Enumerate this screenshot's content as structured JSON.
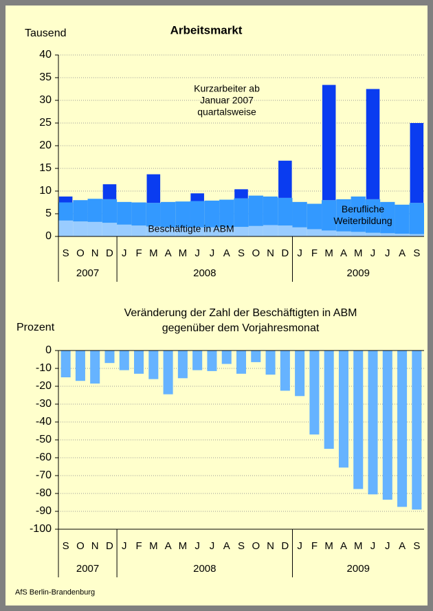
{
  "chart_data": [
    {
      "type": "stacked-bar",
      "title": "Arbeitsmarkt",
      "y_label": "Tausend",
      "categories": [
        "S",
        "O",
        "N",
        "D",
        "J",
        "F",
        "M",
        "A",
        "M",
        "J",
        "J",
        "A",
        "S",
        "O",
        "N",
        "D",
        "J",
        "F",
        "M",
        "A",
        "M",
        "J",
        "J",
        "A",
        "S"
      ],
      "year_labels": [
        "2007",
        null,
        null,
        null,
        "2008",
        null,
        null,
        null,
        null,
        null,
        null,
        null,
        null,
        null,
        null,
        null,
        "2009",
        null,
        null,
        null,
        null,
        null,
        null,
        null,
        null
      ],
      "series": [
        {
          "name": "Beschäftigte in ABM",
          "color": "#99ccff",
          "style": "area",
          "values": [
            3.5,
            3.3,
            3.2,
            3.0,
            2.6,
            2.4,
            2.2,
            2.0,
            2.0,
            2.0,
            2.0,
            2.0,
            2.1,
            2.3,
            2.5,
            2.4,
            2.0,
            1.6,
            1.3,
            1.1,
            1.0,
            0.8,
            0.7,
            0.6,
            0.5
          ]
        },
        {
          "name": "Berufliche Weiterbildung",
          "color": "#3399ff",
          "style": "area",
          "values": [
            4.0,
            4.7,
            5.1,
            5.2,
            5.0,
            5.1,
            5.2,
            5.6,
            5.7,
            5.8,
            5.9,
            6.1,
            6.3,
            6.7,
            6.3,
            6.1,
            5.6,
            5.6,
            6.7,
            7.1,
            7.8,
            7.4,
            6.9,
            6.4,
            6.9
          ]
        },
        {
          "name": "Kurzarbeiter ab Januar 2007 quartalsweise",
          "color": "#0a3cf0",
          "style": "bar",
          "values": [
            1.3,
            null,
            null,
            3.3,
            null,
            null,
            6.3,
            null,
            null,
            1.7,
            null,
            null,
            2.0,
            null,
            null,
            8.2,
            null,
            null,
            25.4,
            null,
            null,
            24.3,
            null,
            null,
            17.6
          ]
        }
      ],
      "ylim": [
        0,
        40
      ],
      "yticks": [
        0,
        5,
        10,
        15,
        20,
        25,
        30,
        35,
        40
      ],
      "grid": true
    },
    {
      "type": "bar",
      "title": [
        "Veränderung der Zahl der Beschäftigten in ABM",
        "gegenüber dem Vorjahresmonat"
      ],
      "y_label": "Prozent",
      "categories": [
        "S",
        "O",
        "N",
        "D",
        "J",
        "F",
        "M",
        "A",
        "M",
        "J",
        "J",
        "A",
        "S",
        "O",
        "N",
        "D",
        "J",
        "F",
        "M",
        "A",
        "M",
        "J",
        "J",
        "A",
        "S"
      ],
      "year_labels": [
        "2007",
        null,
        null,
        null,
        "2008",
        null,
        null,
        null,
        null,
        null,
        null,
        null,
        null,
        null,
        null,
        null,
        "2009",
        null,
        null,
        null,
        null,
        null,
        null,
        null,
        null
      ],
      "series": [
        {
          "name": null,
          "color": "#66b3ff",
          "style": "bar",
          "values": [
            -15,
            -17,
            -18.5,
            -7,
            -11,
            -13,
            -16,
            -24.5,
            -15.5,
            -11,
            -11.5,
            -7.5,
            -13,
            -6.5,
            -13.5,
            -22.5,
            -25.5,
            -47,
            -55,
            -65.5,
            -77.5,
            -80.5,
            -83.5,
            -87.5,
            -89
          ]
        }
      ],
      "ylim": [
        -100,
        0
      ],
      "yticks": [
        0,
        -10,
        -20,
        -30,
        -40,
        -50,
        -60,
        -70,
        -80,
        -90,
        -100
      ],
      "grid": true
    }
  ],
  "footer": "AfS Berlin-Brandenburg"
}
